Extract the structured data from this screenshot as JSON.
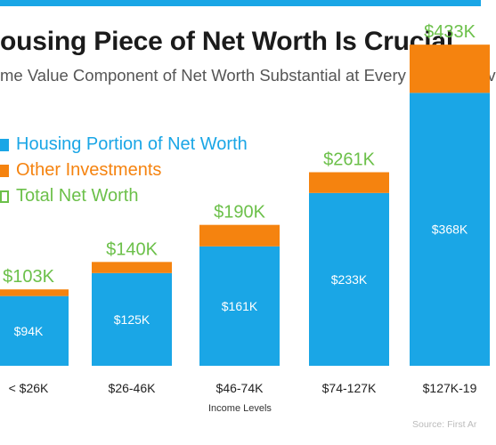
{
  "header": {
    "title": "ousing Piece of Net Worth Is Crucial",
    "subtitle": "me Value Component of Net Worth Substantial at Every Income Lev"
  },
  "legend": {
    "items": [
      {
        "label": "Housing Portion of Net Worth",
        "color": "#1aa6e6",
        "icon": "filled-square-icon"
      },
      {
        "label": "Other Investments",
        "color": "#f5830f",
        "icon": "filled-square-icon"
      },
      {
        "label": "Total Net Worth",
        "color": "#6cc04a",
        "icon": "outline-square-icon"
      }
    ]
  },
  "chart_data": {
    "type": "bar",
    "stacked": true,
    "title": "ousing Piece of Net Worth Is Crucial",
    "subtitle": "me Value Component of Net Worth Substantial at Every Income Lev",
    "xlabel": "Income Levels",
    "ylabel": "",
    "categories": [
      "< $26K",
      "$26-46K",
      "$46-74K",
      "$74-127K",
      "$127K-19"
    ],
    "series": [
      {
        "name": "Housing Portion of Net Worth",
        "color": "#1aa6e6",
        "values": [
          94,
          125,
          161,
          233,
          368
        ],
        "labels": [
          "$94K",
          "$125K",
          "$161K",
          "$233K",
          "$368K"
        ]
      },
      {
        "name": "Other Investments",
        "color": "#f5830f",
        "values": [
          9,
          15,
          29,
          28,
          65
        ]
      }
    ],
    "totals": {
      "name": "Total Net Worth",
      "color": "#6cc04a",
      "values": [
        103,
        140,
        190,
        261,
        433
      ],
      "labels": [
        "$103K",
        "$140K",
        "$190K",
        "$261K",
        "$433K"
      ]
    },
    "ylim": [
      0,
      480
    ],
    "grid": false,
    "legend_position": "top-left"
  },
  "footer": {
    "xaxis_title": "Income Levels",
    "source": "Source: First Ar"
  }
}
